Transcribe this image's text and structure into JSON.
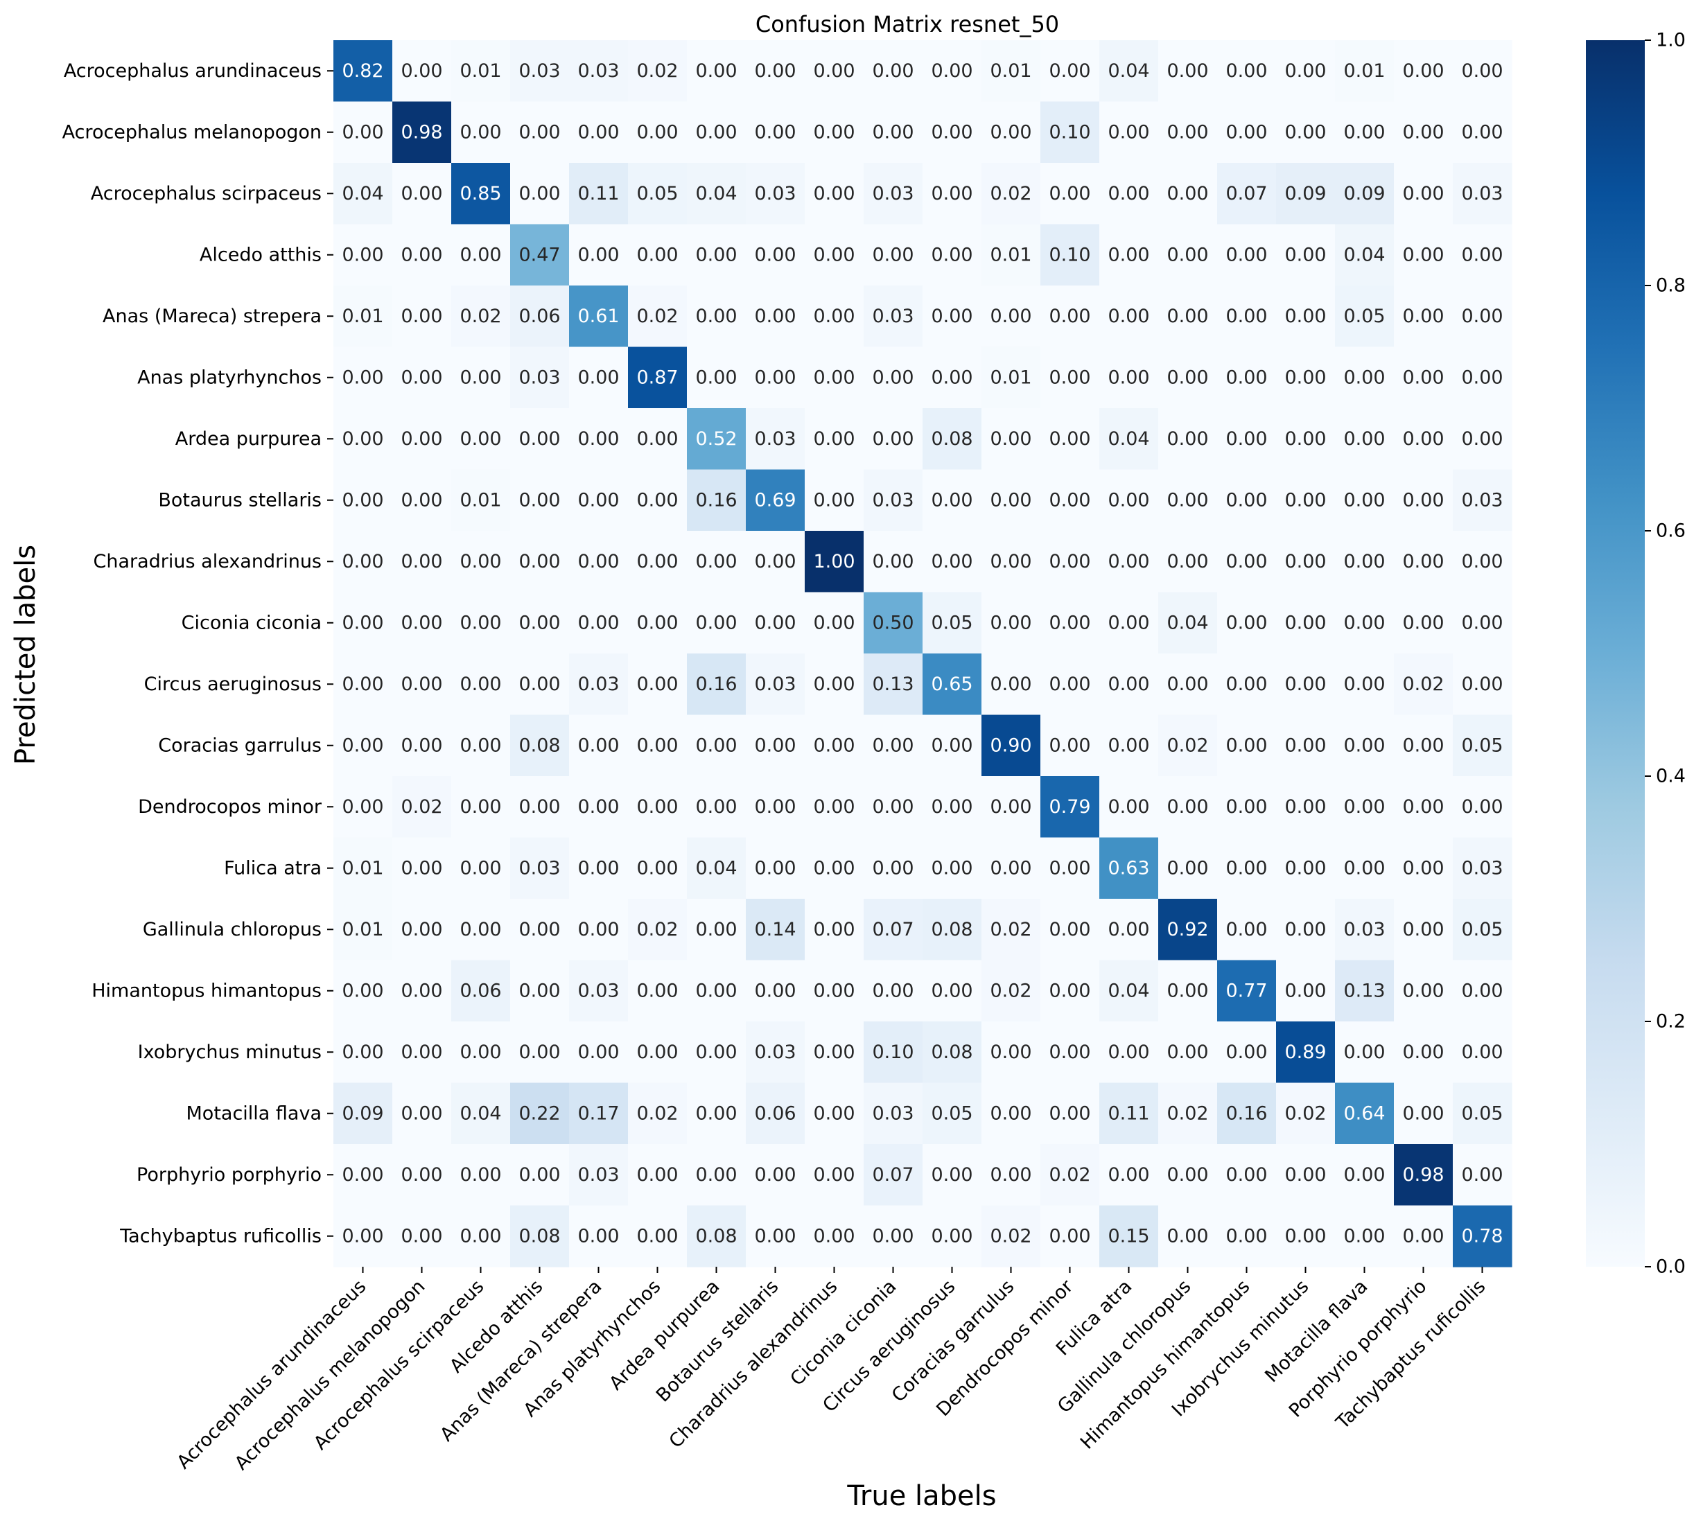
{
  "chart_data": {
    "type": "heatmap",
    "title": "Confusion Matrix resnet_50",
    "xlabel": "True labels",
    "ylabel": "Predicted labels",
    "colormap": "Blues",
    "vmin": 0.0,
    "vmax": 1.0,
    "colorbar_ticks": [
      "0.0",
      "0.2",
      "0.4",
      "0.6",
      "0.8",
      "1.0"
    ],
    "colorbar_tick_values": [
      0.0,
      0.2,
      0.4,
      0.6,
      0.8,
      1.0
    ],
    "x_categories": [
      "Acrocephalus arundinaceus",
      "Acrocephalus melanopogon",
      "Acrocephalus scirpaceus",
      "Alcedo atthis",
      "Anas (Mareca) strepera",
      "Anas platyrhynchos",
      "Ardea purpurea",
      "Botaurus stellaris",
      "Charadrius alexandrinus",
      "Ciconia ciconia",
      "Circus aeruginosus",
      "Coracias garrulus",
      "Dendrocopos minor",
      "Fulica atra",
      "Gallinula chloropus",
      "Himantopus himantopus",
      "Ixobrychus minutus",
      "Motacilla flava",
      "Porphyrio porphyrio",
      "Tachybaptus ruficollis"
    ],
    "y_categories": [
      "Acrocephalus arundinaceus",
      "Acrocephalus melanopogon",
      "Acrocephalus scirpaceus",
      "Alcedo atthis",
      "Anas (Mareca) strepera",
      "Anas platyrhynchos",
      "Ardea purpurea",
      "Botaurus stellaris",
      "Charadrius alexandrinus",
      "Ciconia ciconia",
      "Circus aeruginosus",
      "Coracias garrulus",
      "Dendrocopos minor",
      "Fulica atra",
      "Gallinula chloropus",
      "Himantopus himantopus",
      "Ixobrychus minutus",
      "Motacilla flava",
      "Porphyrio porphyrio",
      "Tachybaptus ruficollis"
    ],
    "values": [
      [
        0.82,
        0.0,
        0.01,
        0.03,
        0.03,
        0.02,
        0.0,
        0.0,
        0.0,
        0.0,
        0.0,
        0.01,
        0.0,
        0.04,
        0.0,
        0.0,
        0.0,
        0.01,
        0.0,
        0.0
      ],
      [
        0.0,
        0.98,
        0.0,
        0.0,
        0.0,
        0.0,
        0.0,
        0.0,
        0.0,
        0.0,
        0.0,
        0.0,
        0.1,
        0.0,
        0.0,
        0.0,
        0.0,
        0.0,
        0.0,
        0.0
      ],
      [
        0.04,
        0.0,
        0.85,
        0.0,
        0.11,
        0.05,
        0.04,
        0.03,
        0.0,
        0.03,
        0.0,
        0.02,
        0.0,
        0.0,
        0.0,
        0.07,
        0.09,
        0.09,
        0.0,
        0.03
      ],
      [
        0.0,
        0.0,
        0.0,
        0.47,
        0.0,
        0.0,
        0.0,
        0.0,
        0.0,
        0.0,
        0.0,
        0.01,
        0.1,
        0.0,
        0.0,
        0.0,
        0.0,
        0.04,
        0.0,
        0.0
      ],
      [
        0.01,
        0.0,
        0.02,
        0.06,
        0.61,
        0.02,
        0.0,
        0.0,
        0.0,
        0.03,
        0.0,
        0.0,
        0.0,
        0.0,
        0.0,
        0.0,
        0.0,
        0.05,
        0.0,
        0.0
      ],
      [
        0.0,
        0.0,
        0.0,
        0.03,
        0.0,
        0.87,
        0.0,
        0.0,
        0.0,
        0.0,
        0.0,
        0.01,
        0.0,
        0.0,
        0.0,
        0.0,
        0.0,
        0.0,
        0.0,
        0.0
      ],
      [
        0.0,
        0.0,
        0.0,
        0.0,
        0.0,
        0.0,
        0.52,
        0.03,
        0.0,
        0.0,
        0.08,
        0.0,
        0.0,
        0.04,
        0.0,
        0.0,
        0.0,
        0.0,
        0.0,
        0.0
      ],
      [
        0.0,
        0.0,
        0.01,
        0.0,
        0.0,
        0.0,
        0.16,
        0.69,
        0.0,
        0.03,
        0.0,
        0.0,
        0.0,
        0.0,
        0.0,
        0.0,
        0.0,
        0.0,
        0.0,
        0.03
      ],
      [
        0.0,
        0.0,
        0.0,
        0.0,
        0.0,
        0.0,
        0.0,
        0.0,
        1.0,
        0.0,
        0.0,
        0.0,
        0.0,
        0.0,
        0.0,
        0.0,
        0.0,
        0.0,
        0.0,
        0.0
      ],
      [
        0.0,
        0.0,
        0.0,
        0.0,
        0.0,
        0.0,
        0.0,
        0.0,
        0.0,
        0.5,
        0.05,
        0.0,
        0.0,
        0.0,
        0.04,
        0.0,
        0.0,
        0.0,
        0.0,
        0.0
      ],
      [
        0.0,
        0.0,
        0.0,
        0.0,
        0.03,
        0.0,
        0.16,
        0.03,
        0.0,
        0.13,
        0.65,
        0.0,
        0.0,
        0.0,
        0.0,
        0.0,
        0.0,
        0.0,
        0.02,
        0.0
      ],
      [
        0.0,
        0.0,
        0.0,
        0.08,
        0.0,
        0.0,
        0.0,
        0.0,
        0.0,
        0.0,
        0.0,
        0.9,
        0.0,
        0.0,
        0.02,
        0.0,
        0.0,
        0.0,
        0.0,
        0.05
      ],
      [
        0.0,
        0.02,
        0.0,
        0.0,
        0.0,
        0.0,
        0.0,
        0.0,
        0.0,
        0.0,
        0.0,
        0.0,
        0.79,
        0.0,
        0.0,
        0.0,
        0.0,
        0.0,
        0.0,
        0.0
      ],
      [
        0.01,
        0.0,
        0.0,
        0.03,
        0.0,
        0.0,
        0.04,
        0.0,
        0.0,
        0.0,
        0.0,
        0.0,
        0.0,
        0.63,
        0.0,
        0.0,
        0.0,
        0.0,
        0.0,
        0.03
      ],
      [
        0.01,
        0.0,
        0.0,
        0.0,
        0.0,
        0.02,
        0.0,
        0.14,
        0.0,
        0.07,
        0.08,
        0.02,
        0.0,
        0.0,
        0.92,
        0.0,
        0.0,
        0.03,
        0.0,
        0.05
      ],
      [
        0.0,
        0.0,
        0.06,
        0.0,
        0.03,
        0.0,
        0.0,
        0.0,
        0.0,
        0.0,
        0.0,
        0.02,
        0.0,
        0.04,
        0.0,
        0.77,
        0.0,
        0.13,
        0.0,
        0.0
      ],
      [
        0.0,
        0.0,
        0.0,
        0.0,
        0.0,
        0.0,
        0.0,
        0.03,
        0.0,
        0.1,
        0.08,
        0.0,
        0.0,
        0.0,
        0.0,
        0.0,
        0.89,
        0.0,
        0.0,
        0.0
      ],
      [
        0.09,
        0.0,
        0.04,
        0.22,
        0.17,
        0.02,
        0.0,
        0.06,
        0.0,
        0.03,
        0.05,
        0.0,
        0.0,
        0.11,
        0.02,
        0.16,
        0.02,
        0.64,
        0.0,
        0.05
      ],
      [
        0.0,
        0.0,
        0.0,
        0.0,
        0.03,
        0.0,
        0.0,
        0.0,
        0.0,
        0.07,
        0.0,
        0.0,
        0.02,
        0.0,
        0.0,
        0.0,
        0.0,
        0.0,
        0.98,
        0.0
      ],
      [
        0.0,
        0.0,
        0.0,
        0.08,
        0.0,
        0.0,
        0.08,
        0.0,
        0.0,
        0.0,
        0.0,
        0.02,
        0.0,
        0.15,
        0.0,
        0.0,
        0.0,
        0.0,
        0.0,
        0.78
      ]
    ],
    "colors": {
      "cmap_stops": [
        "#f7fbff",
        "#deebf7",
        "#c6dbef",
        "#9ecae1",
        "#6baed6",
        "#4292c6",
        "#2171b5",
        "#08519c",
        "#08306b"
      ],
      "text_dark": "#262626",
      "text_light": "#ffffff"
    }
  }
}
